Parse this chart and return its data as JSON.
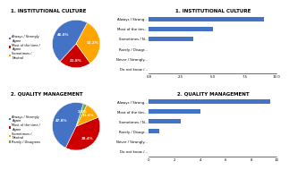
{
  "chart1_title": "1. INSTITUTIONAL CULTURE",
  "chart1_pie_labels": [
    "Always / Strongly\nAgree",
    "Most of the time /\nAgree",
    "Sometimes /\nNeutral"
  ],
  "chart1_pie_values": [
    46.0,
    21.8,
    32.2
  ],
  "chart1_pie_colors": [
    "#4472C4",
    "#CC0000",
    "#FFA500"
  ],
  "chart1_pie_startangle": 62,
  "chart2_title": "1. INSTITUTIONAL CULTURE",
  "chart2_categories": [
    "Always / Strong...",
    "Most of the tim...",
    "Sometimes / N...",
    "Rarely / Disagr...",
    "Never / Strongly...",
    "Do not know /..."
  ],
  "chart2_values": [
    9.0,
    5.0,
    3.5,
    0.0,
    0.0,
    0.0
  ],
  "chart2_color": "#4472C4",
  "chart2_xlim": [
    0.0,
    10.0
  ],
  "chart2_xticks": [
    0.0,
    2.5,
    5.0,
    7.5,
    10.0
  ],
  "chart2_xtick_labels": [
    "0.0",
    "2.5",
    "5.0",
    "7.5",
    "10.0"
  ],
  "chart3_title": "2. QUALITY MANAGEMENT",
  "chart3_pie_labels": [
    "Always / Strongly\nAgree",
    "Most of the time /\nAgree",
    "Sometimes /\nNeutral",
    "Rarely / Disagrees"
  ],
  "chart3_pie_values": [
    47.8,
    38.4,
    11.4,
    2.4
  ],
  "chart3_pie_colors": [
    "#4472C4",
    "#CC0000",
    "#FFA500",
    "#70AD47"
  ],
  "chart3_pie_startangle": 72,
  "chart4_title": "2. QUALITY MANAGEMENT",
  "chart4_categories": [
    "Always / Strong...",
    "Most of the tim...",
    "Sometimes / N...",
    "Rarely / Disagr...",
    "Never / Strongly...",
    "Do not know /..."
  ],
  "chart4_values": [
    9.5,
    4.0,
    2.5,
    0.8,
    0.0,
    0.0
  ],
  "chart4_color": "#4472C4",
  "chart4_xlim": [
    0.0,
    10.0
  ],
  "chart4_xticks": [
    0,
    2,
    4,
    6,
    8,
    10
  ],
  "chart4_xtick_labels": [
    "0",
    "2",
    "4",
    "6",
    "8",
    "10"
  ],
  "bg_color": "#FFFFFF",
  "title_fontsize": 4.0,
  "tick_fontsize": 2.8,
  "legend_fontsize": 2.5,
  "pct_fontsize": 2.8
}
